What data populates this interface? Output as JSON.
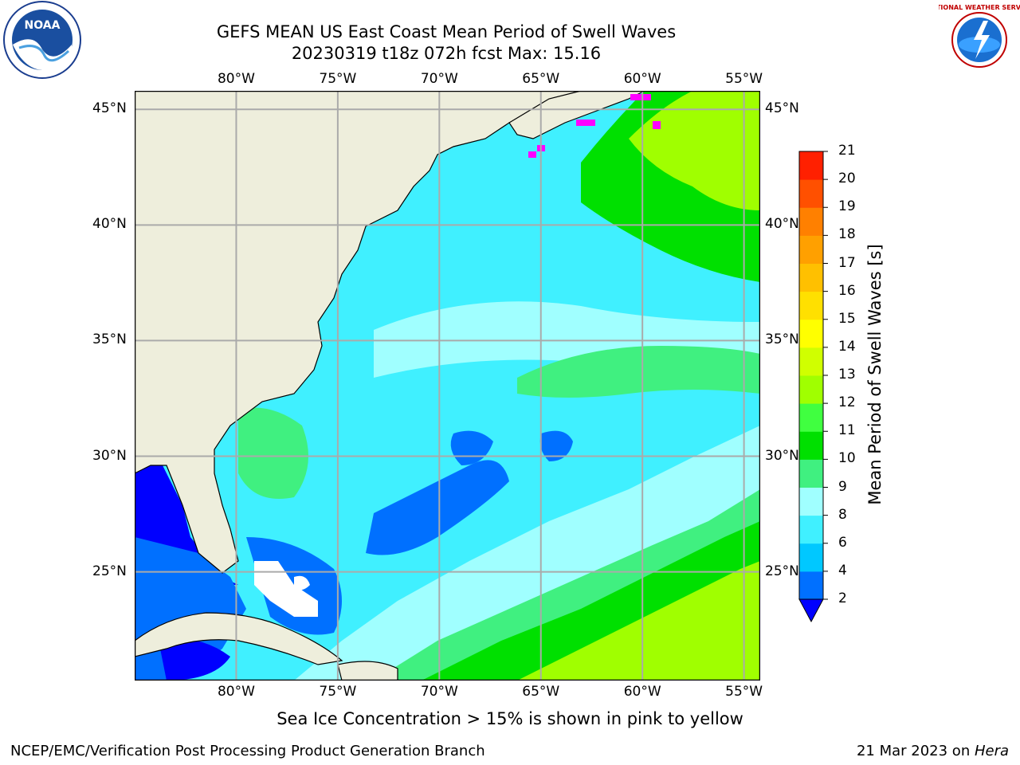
{
  "header": {
    "title_line1": "GEFS MEAN US East Coast Mean Period of Swell Waves",
    "title_line2": "20230319 t18z 072h fcst   Max: 15.16"
  },
  "logos": {
    "left_text": "NOAA",
    "right_text": "NATIONAL WEATHER SERVICE"
  },
  "map": {
    "lon_labels": [
      "80°W",
      "75°W",
      "70°W",
      "65°W",
      "60°W",
      "55°W"
    ],
    "lat_labels": [
      "45°N",
      "40°N",
      "35°N",
      "30°N",
      "25°N"
    ],
    "lon_values": [
      -80,
      -75,
      -70,
      -65,
      -60,
      -55
    ],
    "lat_values": [
      45,
      40,
      35,
      30,
      25
    ],
    "extent": {
      "lon_min": -85,
      "lon_max": -54.2,
      "lat_min": 20.3,
      "lat_max": 45.8
    }
  },
  "colorbar": {
    "label": "Mean Period of Swell Waves [s]",
    "ticks": [
      "2",
      "4",
      "6",
      "8",
      "9",
      "10",
      "11",
      "12",
      "13",
      "14",
      "15",
      "16",
      "17",
      "18",
      "19",
      "20",
      "21"
    ],
    "colors": [
      "#0070ff",
      "#00c8ff",
      "#40f0ff",
      "#a0ffff",
      "#40f080",
      "#00e000",
      "#40ff40",
      "#a0ff00",
      "#d0ff00",
      "#ffff00",
      "#ffe000",
      "#ffc000",
      "#ffa000",
      "#ff8000",
      "#ff5000",
      "#ff2000"
    ],
    "under_color": "#0000ff"
  },
  "footer": {
    "ice_note": "Sea Ice Concentration > 15% is shown in pink to yellow",
    "credit": "NCEP/EMC/Verification Post Processing Product Generation Branch",
    "date_prefix": "21 Mar 2023 on ",
    "host": "Hera"
  }
}
